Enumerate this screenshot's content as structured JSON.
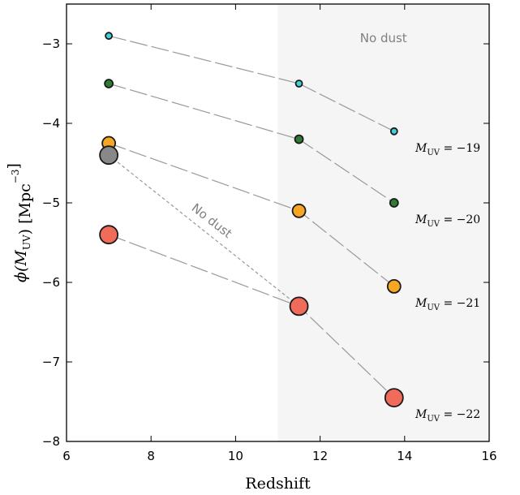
{
  "chart_data": {
    "type": "scatter",
    "xlabel": "Redshift",
    "ylabel": "ϕ(M_UV) [Mpc^−3]",
    "xlim": [
      6,
      16
    ],
    "ylim": [
      -8,
      -2.5
    ],
    "x_ticks": [
      {
        "value": 6,
        "label": "6"
      },
      {
        "value": 8,
        "label": "8"
      },
      {
        "value": 10,
        "label": "10"
      },
      {
        "value": 12,
        "label": "12"
      },
      {
        "value": 14,
        "label": "14"
      },
      {
        "value": 16,
        "label": "16"
      }
    ],
    "y_ticks": [
      {
        "value": -3,
        "label": "−3"
      },
      {
        "value": -4,
        "label": "−4"
      },
      {
        "value": -5,
        "label": "−5"
      },
      {
        "value": -6,
        "label": "−6"
      },
      {
        "value": -7,
        "label": "−7"
      },
      {
        "value": -8,
        "label": "−8"
      }
    ],
    "grid": false,
    "shaded_region": {
      "x_from": 11,
      "x_to": 16,
      "color": "#f5f5f5",
      "label": "No dust"
    },
    "series": [
      {
        "id": "m19",
        "name": "M_UV = −19",
        "label_main": "M",
        "label_sub": "UV",
        "label_val": " = −19",
        "color": "#3fd2d8",
        "x": [
          7.0,
          11.5,
          13.75
        ],
        "y": [
          -2.9,
          -3.5,
          -4.1
        ]
      },
      {
        "id": "m20",
        "name": "M_UV = −20",
        "label_main": "M",
        "label_sub": "UV",
        "label_val": " = −20",
        "color": "#2e7d32",
        "x": [
          7.0,
          11.5,
          13.75
        ],
        "y": [
          -3.5,
          -4.2,
          -5.0
        ]
      },
      {
        "id": "m21",
        "name": "M_UV = −21",
        "label_main": "M",
        "label_sub": "UV",
        "label_val": " = −21",
        "color": "#f5a623",
        "x": [
          7.0,
          11.5,
          13.75
        ],
        "y": [
          -4.25,
          -5.1,
          -6.05
        ]
      },
      {
        "id": "m22",
        "name": "M_UV = −22",
        "label_main": "M",
        "label_sub": "UV",
        "label_val": " = −22",
        "color": "#f06b5a",
        "x": [
          7.0,
          11.5,
          13.75
        ],
        "y": [
          -5.4,
          -6.3,
          -7.45
        ]
      }
    ],
    "no_dust_point": {
      "x": 7.0,
      "y": -4.4,
      "color": "#888888"
    },
    "no_dust_line": {
      "x": [
        7.0,
        11.5
      ],
      "y": [
        -4.4,
        -6.3
      ],
      "label": "No dust"
    }
  }
}
